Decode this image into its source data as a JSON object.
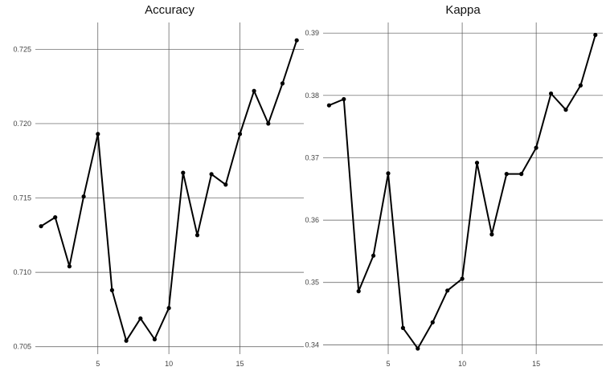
{
  "chart_data": [
    {
      "type": "line",
      "title": "Accuracy",
      "xlabel": "",
      "ylabel": "",
      "x": [
        1,
        2,
        3,
        4,
        5,
        6,
        7,
        8,
        9,
        10,
        11,
        12,
        13,
        14,
        15,
        16,
        17,
        18,
        19
      ],
      "series": [
        {
          "values": [
            0.7131,
            0.7137,
            0.7104,
            0.7151,
            0.7193,
            0.7088,
            0.7054,
            0.7069,
            0.7055,
            0.7076,
            0.7167,
            0.7125,
            0.7166,
            0.7159,
            0.7193,
            0.7222,
            0.72,
            0.7227,
            0.7256
          ]
        }
      ],
      "xlim": [
        0.6,
        19.5
      ],
      "ylim": [
        0.7045,
        0.7268
      ],
      "xticks": [
        5,
        10,
        15
      ],
      "xtick_labels": [
        "5",
        "10",
        "15"
      ],
      "yticks": [
        0.705,
        0.71,
        0.715,
        0.72,
        0.725
      ],
      "ytick_labels": [
        "0.705",
        "0.710",
        "0.715",
        "0.720",
        "0.725"
      ],
      "grid": true,
      "color": "#000000"
    },
    {
      "type": "line",
      "title": "Kappa",
      "xlabel": "",
      "ylabel": "",
      "x": [
        1,
        2,
        3,
        4,
        5,
        6,
        7,
        8,
        9,
        10,
        11,
        12,
        13,
        14,
        15,
        16,
        17,
        18,
        19
      ],
      "series": [
        {
          "values": [
            0.3784,
            0.3794,
            0.3486,
            0.3543,
            0.3675,
            0.3427,
            0.3394,
            0.3436,
            0.3487,
            0.3506,
            0.3692,
            0.3577,
            0.3674,
            0.3674,
            0.3716,
            0.3803,
            0.3777,
            0.3816,
            0.3897
          ]
        }
      ],
      "xlim": [
        0.6,
        19.5
      ],
      "ylim": [
        0.3385,
        0.3917
      ],
      "xticks": [
        5,
        10,
        15
      ],
      "xtick_labels": [
        "5",
        "10",
        "15"
      ],
      "yticks": [
        0.34,
        0.35,
        0.36,
        0.37,
        0.38,
        0.39
      ],
      "ytick_labels": [
        "0.34",
        "0.35",
        "0.36",
        "0.37",
        "0.38",
        "0.39"
      ],
      "grid": true,
      "color": "#000000"
    }
  ]
}
